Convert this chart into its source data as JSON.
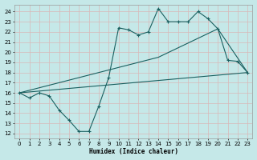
{
  "xlabel": "Humidex (Indice chaleur)",
  "xlim": [
    -0.5,
    23.5
  ],
  "ylim": [
    11.5,
    24.7
  ],
  "yticks": [
    12,
    13,
    14,
    15,
    16,
    17,
    18,
    19,
    20,
    21,
    22,
    23,
    24
  ],
  "xticks": [
    0,
    1,
    2,
    3,
    4,
    5,
    6,
    7,
    8,
    9,
    10,
    11,
    12,
    13,
    14,
    15,
    16,
    17,
    18,
    19,
    20,
    21,
    22,
    23
  ],
  "bg_color": "#c5e8e8",
  "grid_color": "#b0d5d5",
  "line_color": "#1a6060",
  "line1_x": [
    0,
    1,
    2,
    3,
    4,
    5,
    6,
    7,
    8,
    9,
    10,
    11,
    12,
    13,
    14,
    15,
    16,
    17,
    18,
    19,
    20,
    21,
    22,
    23
  ],
  "line1_y": [
    16.0,
    15.5,
    16.0,
    15.7,
    14.3,
    13.3,
    12.2,
    12.2,
    14.7,
    17.5,
    22.4,
    22.2,
    21.7,
    22.0,
    24.3,
    23.0,
    23.0,
    23.0,
    24.0,
    23.3,
    22.3,
    19.2,
    19.1,
    18.0
  ],
  "line2_x": [
    0,
    23
  ],
  "line2_y": [
    16.0,
    18.0
  ],
  "line3_x": [
    0,
    14,
    20,
    23
  ],
  "line3_y": [
    16.0,
    19.5,
    22.3,
    18.0
  ]
}
